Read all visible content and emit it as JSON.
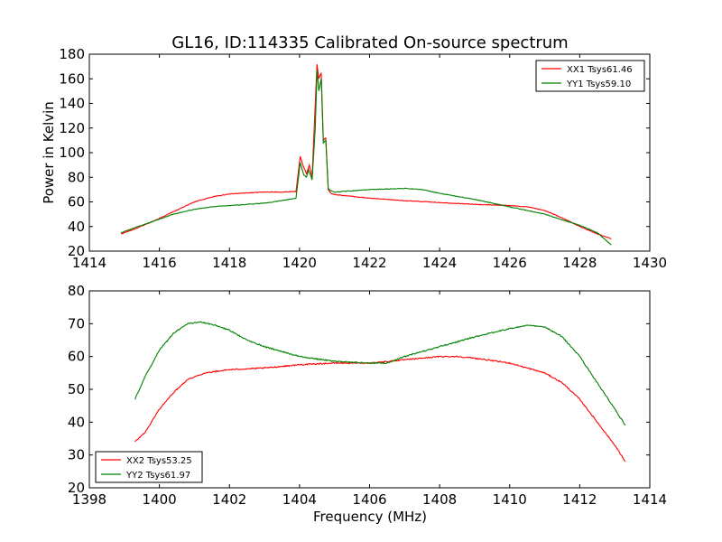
{
  "figure": {
    "title": "GL16, ID:114335 Calibrated On-source spectrum",
    "xlabel": "Frequency (MHz)",
    "ylabel": "Power in Kelvin"
  },
  "chart_data": [
    {
      "type": "line",
      "title": "GL16, ID:114335 Calibrated On-source spectrum",
      "xlabel": "",
      "ylabel": "Power in Kelvin",
      "xlim": [
        1414,
        1430
      ],
      "ylim": [
        20,
        180
      ],
      "xticks": [
        1414,
        1416,
        1418,
        1420,
        1422,
        1424,
        1426,
        1428,
        1430
      ],
      "yticks": [
        20,
        40,
        60,
        80,
        100,
        120,
        140,
        160,
        180
      ],
      "grid": false,
      "legend": "top-right",
      "series": [
        {
          "name": "XX1 Tsys61.46",
          "color": "#ff0000",
          "points": [
            [
              1414.9,
              34
            ],
            [
              1415.3,
              38
            ],
            [
              1415.8,
              44
            ],
            [
              1416.4,
              52
            ],
            [
              1417,
              60
            ],
            [
              1417.5,
              64
            ],
            [
              1418,
              66.5
            ],
            [
              1419,
              68
            ],
            [
              1419.5,
              68
            ],
            [
              1419.9,
              68.5
            ],
            [
              1420.02,
              97
            ],
            [
              1420.12,
              88
            ],
            [
              1420.2,
              83
            ],
            [
              1420.28,
              90
            ],
            [
              1420.36,
              80
            ],
            [
              1420.45,
              140
            ],
            [
              1420.5,
              172
            ],
            [
              1420.55,
              160
            ],
            [
              1420.62,
              165
            ],
            [
              1420.68,
              110
            ],
            [
              1420.75,
              112
            ],
            [
              1420.82,
              70
            ],
            [
              1420.9,
              67
            ],
            [
              1421,
              66
            ],
            [
              1422,
              63
            ],
            [
              1423,
              61
            ],
            [
              1424,
              59.5
            ],
            [
              1425,
              58
            ],
            [
              1426,
              57
            ],
            [
              1426.5,
              56
            ],
            [
              1427,
              53
            ],
            [
              1427.5,
              47
            ],
            [
              1428,
              40
            ],
            [
              1428.5,
              34
            ],
            [
              1428.9,
              30
            ]
          ]
        },
        {
          "name": "YY1 Tsys59.10",
          "color": "#008000",
          "points": [
            [
              1414.9,
              35
            ],
            [
              1415.3,
              39
            ],
            [
              1415.8,
              44
            ],
            [
              1416.4,
              50
            ],
            [
              1417,
              54
            ],
            [
              1417.5,
              56
            ],
            [
              1418,
              57
            ],
            [
              1419,
              59
            ],
            [
              1419.5,
              61
            ],
            [
              1419.9,
              63
            ],
            [
              1420.02,
              92
            ],
            [
              1420.12,
              82
            ],
            [
              1420.2,
              80
            ],
            [
              1420.26,
              86
            ],
            [
              1420.36,
              78
            ],
            [
              1420.45,
              120
            ],
            [
              1420.5,
              167
            ],
            [
              1420.55,
              150
            ],
            [
              1420.62,
              160
            ],
            [
              1420.68,
              108
            ],
            [
              1420.75,
              110
            ],
            [
              1420.82,
              71
            ],
            [
              1420.9,
              69
            ],
            [
              1421,
              68
            ],
            [
              1422,
              70
            ],
            [
              1423,
              71
            ],
            [
              1423.5,
              70
            ],
            [
              1424,
              67
            ],
            [
              1425,
              62
            ],
            [
              1426,
              56
            ],
            [
              1427,
              50
            ],
            [
              1428,
              41
            ],
            [
              1428.5,
              35
            ],
            [
              1428.9,
              25
            ]
          ]
        }
      ]
    },
    {
      "type": "line",
      "title": "",
      "xlabel": "Frequency (MHz)",
      "ylabel": "",
      "xlim": [
        1398,
        1414
      ],
      "ylim": [
        20,
        80
      ],
      "xticks": [
        1398,
        1400,
        1402,
        1404,
        1406,
        1408,
        1410,
        1412,
        1414
      ],
      "yticks": [
        20,
        30,
        40,
        50,
        60,
        70,
        80
      ],
      "grid": false,
      "legend": "bottom-left",
      "series": [
        {
          "name": "XX2 Tsys53.25",
          "color": "#ff0000",
          "points": [
            [
              1399.3,
              34
            ],
            [
              1399.6,
              37
            ],
            [
              1400,
              44
            ],
            [
              1400.4,
              49
            ],
            [
              1400.8,
              53
            ],
            [
              1401.3,
              55
            ],
            [
              1402,
              56
            ],
            [
              1403,
              56.5
            ],
            [
              1404,
              57.5
            ],
            [
              1405,
              58
            ],
            [
              1406,
              58
            ],
            [
              1407,
              59
            ],
            [
              1408,
              60
            ],
            [
              1408.5,
              60
            ],
            [
              1409,
              59.5
            ],
            [
              1410,
              58
            ],
            [
              1411,
              55
            ],
            [
              1411.5,
              52
            ],
            [
              1412,
              47
            ],
            [
              1412.5,
              40
            ],
            [
              1413,
              33
            ],
            [
              1413.3,
              28
            ]
          ]
        },
        {
          "name": "YY2 Tsys61.97",
          "color": "#008000",
          "points": [
            [
              1399.3,
              47
            ],
            [
              1399.6,
              54
            ],
            [
              1400,
              62
            ],
            [
              1400.4,
              67
            ],
            [
              1400.8,
              70
            ],
            [
              1401.2,
              70.5
            ],
            [
              1401.6,
              69.5
            ],
            [
              1402,
              68
            ],
            [
              1402.5,
              65
            ],
            [
              1403,
              63
            ],
            [
              1404,
              60
            ],
            [
              1405,
              58.5
            ],
            [
              1406,
              58
            ],
            [
              1406.5,
              58
            ],
            [
              1407,
              60
            ],
            [
              1408,
              63
            ],
            [
              1409,
              66
            ],
            [
              1410,
              68.5
            ],
            [
              1410.5,
              69.5
            ],
            [
              1411,
              69
            ],
            [
              1411.5,
              66
            ],
            [
              1412,
              60
            ],
            [
              1412.5,
              52
            ],
            [
              1413,
              44
            ],
            [
              1413.3,
              39
            ]
          ]
        }
      ]
    }
  ]
}
